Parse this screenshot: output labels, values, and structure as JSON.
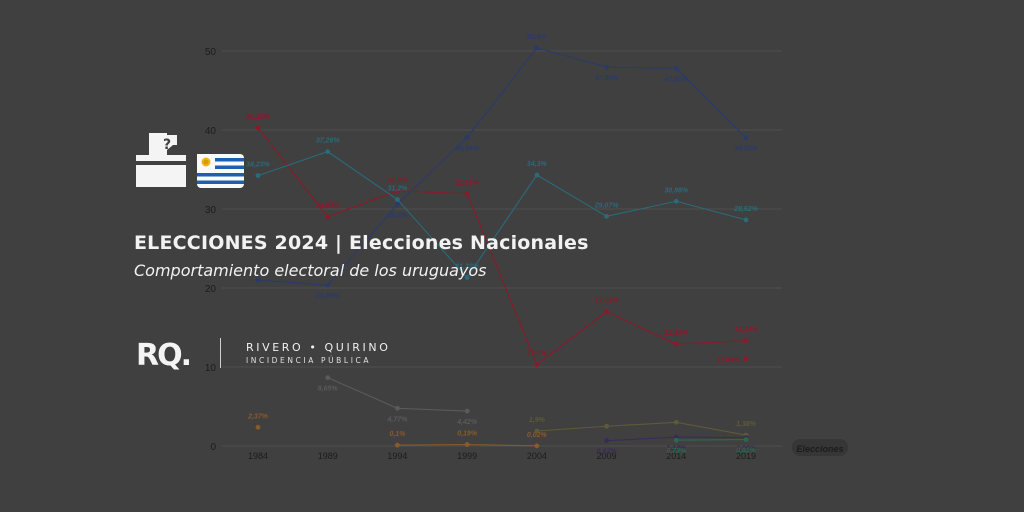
{
  "header": {
    "title": "ELECCIONES 2024 | Elecciones Nacionales",
    "subtitle": "Comportamiento electoral de los uruguayos"
  },
  "logo": {
    "mark": "RQ.",
    "name": "RIVERO • QUIRINO",
    "tagline": "INCIDENCIA PÚBLICA"
  },
  "icons": [
    "ballot-box-icon",
    "uruguay-flag-icon"
  ],
  "chart_data": {
    "type": "line",
    "title": "",
    "xlabel": "Elecciones",
    "ylabel": "",
    "ylim": [
      0,
      50
    ],
    "yticks": [
      0,
      10,
      20,
      30,
      40,
      50
    ],
    "grid": true,
    "categories": [
      "1984",
      "1989",
      "1994",
      "1999",
      "2004",
      "2009",
      "2014",
      "2019"
    ],
    "series": [
      {
        "color": "#2a3b6b",
        "values": [
          21,
          20.35,
          30.6,
          39.06,
          50.4,
          47.96,
          47.81,
          39.02
        ],
        "labels": [
          "",
          "20,35%",
          "30,6%",
          "39,06%",
          "50,4%",
          "47,96%",
          "47,81%",
          "39,02%"
        ]
      },
      {
        "color": "#8a1a2a",
        "values": [
          40.28,
          29.03,
          32.3,
          31.93,
          10.3,
          17.02,
          12.89,
          13.34
        ],
        "labels": [
          "40,28%",
          "29,03%",
          "32,3%",
          "31,93%",
          "10,3%",
          "17,02%",
          "12,89%",
          "13,34%"
        ]
      },
      {
        "color": "#2a6a7a",
        "values": [
          34.23,
          37.26,
          31.2,
          21.32,
          34.3,
          29.07,
          30.98,
          28.62
        ],
        "labels": [
          "34,23%",
          "37,26%",
          "31,2%",
          "21,32%",
          "34,3%",
          "29,07%",
          "30,98%",
          "28,62%"
        ]
      },
      {
        "color": "#5a5a5a",
        "values": [
          null,
          8.65,
          4.77,
          4.42,
          null,
          null,
          null,
          null
        ],
        "labels": [
          "",
          "8,65%",
          "4,77%",
          "4,42%",
          "",
          "",
          "",
          ""
        ]
      },
      {
        "color": "#8a5a2a",
        "values": [
          2.37,
          null,
          0.1,
          0.19,
          0.02,
          null,
          null,
          null
        ],
        "labels": [
          "2,37%",
          "",
          "0,1%",
          "0,19%",
          "0,02%",
          "",
          "",
          ""
        ]
      },
      {
        "color": "#5e5a38",
        "values": [
          null,
          null,
          null,
          null,
          1.9,
          2.5,
          3,
          1.38
        ],
        "labels": [
          "",
          "",
          "",
          "",
          "1,9%",
          "",
          "",
          "1,38%"
        ]
      },
      {
        "color": "#3a2a5a",
        "values": [
          null,
          null,
          null,
          null,
          null,
          0.67,
          1.13,
          1.06
        ],
        "labels": [
          "",
          "",
          "",
          "",
          "",
          "0,67%",
          "1,13%",
          "1,06%"
        ]
      },
      {
        "color": "#2a6a4a",
        "values": [
          null,
          null,
          null,
          null,
          null,
          null,
          0.73,
          0.81
        ],
        "labels": [
          "",
          "",
          "",
          "",
          "",
          "",
          "0,73%",
          "0,81%"
        ]
      }
    ],
    "extra_points": [
      {
        "x": "2019",
        "value": 11.04,
        "label": "11,04%",
        "color": "#8a1a2a"
      }
    ]
  }
}
